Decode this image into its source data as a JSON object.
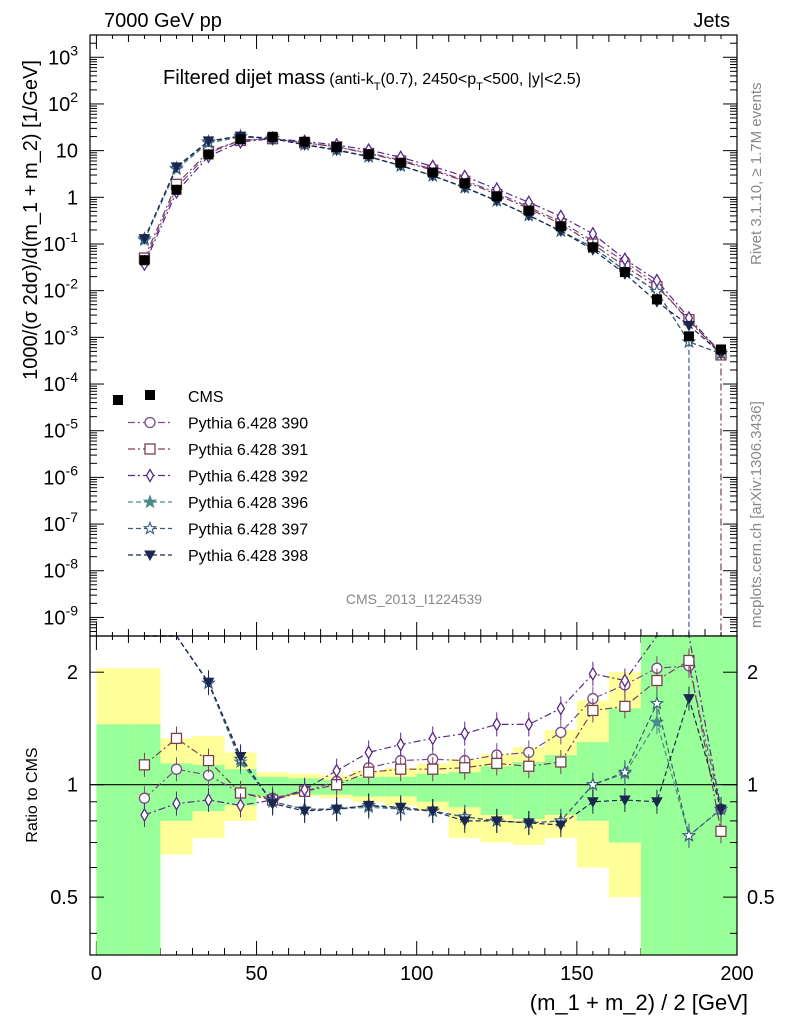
{
  "header": {
    "left": "7000 GeV pp",
    "right": "Jets"
  },
  "title": {
    "main": "Filtered dijet mass",
    "sub_prefix": "(anti-k",
    "sub_k_sub": "T",
    "sub_mid": "(0.7), 2450<p",
    "sub_p_sub": "T",
    "sub_suffix": "<500, |y|<2.5)"
  },
  "side_labels": {
    "rivet": "Rivet 3.1.10, ≥ 1.7M events",
    "mcplots": "mcplots.cern.ch [arXiv:1306.3436]"
  },
  "analysis_label": "CMS_2013_I1224539",
  "axes": {
    "xlabel": "(m_1 + m_2) / 2 [GeV]",
    "ylabel_top": "1000/(σ 2dσ)/d(m_1 + m_2) [1/GeV]",
    "ylabel_ratio": "Ratio to CMS"
  },
  "chart_data": {
    "type": "scatter",
    "x_range": [
      -2,
      200
    ],
    "x_ticks": [
      "0",
      "50",
      "100",
      "150",
      "200"
    ],
    "top_panel": {
      "y_scale": "log",
      "y_range": [
        4e-10,
        3000
      ],
      "y_ticks": [
        "10^-9",
        "10^-8",
        "10^-7",
        "10^-6",
        "10^-5",
        "10^-4",
        "10^-3",
        "10^-2",
        "10^-1",
        "1",
        "10",
        "10^2",
        "10^3"
      ],
      "x": [
        15,
        25,
        35,
        45,
        55,
        65,
        75,
        85,
        95,
        105,
        115,
        125,
        135,
        145,
        155,
        165,
        175,
        185,
        195
      ],
      "cms": [
        0.045,
        1.45,
        8.3,
        17.5,
        19.8,
        15.5,
        12.0,
        8.4,
        5.5,
        3.4,
        2.0,
        1.05,
        0.52,
        0.24,
        0.085,
        0.025,
        0.0065,
        0.00105,
        0.00055
      ],
      "series": [
        {
          "name": "Pythia 6.428 390",
          "color": "#7a4a8a",
          "marker": "circle-open",
          "values": [
            0.042,
            1.6,
            8.8,
            16.8,
            18.2,
            14.6,
            12.2,
            8.9,
            6.3,
            4.0,
            2.3,
            1.25,
            0.62,
            0.3,
            0.115,
            0.042,
            0.0135,
            0.0022,
            0.00047
          ]
        },
        {
          "name": "Pythia 6.428 391",
          "color": "#7a4052",
          "marker": "square-open",
          "values": [
            0.05,
            1.9,
            9.6,
            16.5,
            18.0,
            14.8,
            12.0,
            8.7,
            6.0,
            3.8,
            2.2,
            1.15,
            0.57,
            0.27,
            0.1,
            0.033,
            0.0122,
            0.0024,
            0.00042
          ]
        },
        {
          "name": "Pythia 6.428 392",
          "color": "#5a2a8a",
          "marker": "diamond-open",
          "values": [
            0.037,
            1.3,
            7.6,
            15.4,
            18.0,
            15.8,
            13.2,
            10.3,
            7.2,
            4.6,
            2.8,
            1.5,
            0.78,
            0.39,
            0.165,
            0.047,
            0.0165,
            0.0026,
            0.00047
          ]
        },
        {
          "name": "Pythia 6.428 396",
          "color": "#4a8a8a",
          "marker": "star-filled",
          "values": [
            0.12,
            4.0,
            14.6,
            19.5,
            18.2,
            13.4,
            10.3,
            7.4,
            4.7,
            2.9,
            1.6,
            0.84,
            0.41,
            0.19,
            0.085,
            0.027,
            0.0095,
            0.0008,
            0.00045
          ]
        },
        {
          "name": "Pythia 6.428 397",
          "color": "#3a5a7a",
          "marker": "star-open",
          "values": [
            0.13,
            4.2,
            15.5,
            20.5,
            18.5,
            13.5,
            10.5,
            7.5,
            4.8,
            2.9,
            1.65,
            0.85,
            0.41,
            0.19,
            0.085,
            0.027,
            0.0097,
            0.0008,
            0.00045
          ]
        },
        {
          "name": "Pythia 6.428 398",
          "color": "#1a2850",
          "marker": "triangle-down-filled",
          "values": [
            0.13,
            4.5,
            16.2,
            20.5,
            18.0,
            13.3,
            10.2,
            7.4,
            4.8,
            2.9,
            1.62,
            0.84,
            0.41,
            0.19,
            0.075,
            0.023,
            0.0058,
            0.0018,
            0.00045
          ]
        }
      ]
    },
    "ratio_panel": {
      "y_scale": "log",
      "y_range": [
        0.35,
        2.5
      ],
      "y_ticks": [
        "0.5",
        "1",
        "2"
      ],
      "band_x_edges": [
        0,
        10,
        20,
        30,
        40,
        50,
        60,
        70,
        80,
        90,
        100,
        110,
        120,
        130,
        140,
        150,
        160,
        170,
        180,
        190,
        200
      ],
      "band_green_low": [
        0.35,
        0.35,
        0.8,
        0.85,
        0.88,
        0.93,
        0.94,
        0.94,
        0.93,
        0.93,
        0.9,
        0.87,
        0.83,
        0.81,
        0.83,
        0.8,
        0.7,
        0.35,
        0.35,
        0.35
      ],
      "band_green_high": [
        1.45,
        1.45,
        1.14,
        1.13,
        1.1,
        1.05,
        1.04,
        1.03,
        1.05,
        1.05,
        1.07,
        1.08,
        1.12,
        1.15,
        1.2,
        1.3,
        1.6,
        2.5,
        2.5,
        2.5
      ],
      "band_yellow_low": [
        0.35,
        0.35,
        0.65,
        0.72,
        0.8,
        0.92,
        0.93,
        0.92,
        0.9,
        0.88,
        0.85,
        0.72,
        0.7,
        0.69,
        0.72,
        0.6,
        0.5,
        0.35,
        0.35,
        0.35
      ],
      "band_yellow_high": [
        2.05,
        2.05,
        1.33,
        1.35,
        1.22,
        1.08,
        1.07,
        1.06,
        1.09,
        1.11,
        1.14,
        1.17,
        1.21,
        1.26,
        1.4,
        1.68,
        2.0,
        2.5,
        2.5,
        2.5
      ],
      "series_ratios": [
        [
          0.92,
          1.1,
          1.06,
          0.95,
          0.92,
          0.96,
          1.02,
          1.11,
          1.16,
          1.17,
          1.16,
          1.2,
          1.22,
          1.38,
          1.7,
          1.85,
          2.05,
          2.08,
          0.86
        ],
        [
          1.13,
          1.33,
          1.16,
          0.95,
          0.91,
          0.96,
          1.0,
          1.08,
          1.1,
          1.1,
          1.11,
          1.14,
          1.12,
          1.15,
          1.58,
          1.62,
          1.9,
          2.15,
          0.75
        ],
        [
          0.83,
          0.89,
          0.91,
          0.88,
          0.91,
          0.97,
          1.09,
          1.22,
          1.28,
          1.33,
          1.37,
          1.45,
          1.45,
          1.6,
          1.98,
          1.9,
          2.5,
          2.5,
          0.86
        ],
        [
          2.5,
          2.5,
          1.87,
          1.15,
          0.9,
          0.86,
          0.86,
          0.87,
          0.86,
          0.85,
          0.82,
          0.8,
          0.79,
          0.8,
          1.0,
          1.07,
          1.47,
          0.73,
          0.86
        ],
        [
          2.5,
          2.5,
          1.87,
          1.17,
          0.9,
          0.86,
          0.86,
          0.88,
          0.86,
          0.85,
          0.82,
          0.8,
          0.79,
          0.8,
          1.0,
          1.08,
          1.65,
          0.73,
          0.86
        ],
        [
          2.5,
          2.5,
          1.88,
          1.19,
          0.89,
          0.85,
          0.86,
          0.88,
          0.87,
          0.85,
          0.8,
          0.8,
          0.79,
          0.78,
          0.9,
          0.91,
          0.9,
          1.7,
          0.86
        ]
      ]
    }
  },
  "legend": {
    "data_label": "CMS"
  }
}
